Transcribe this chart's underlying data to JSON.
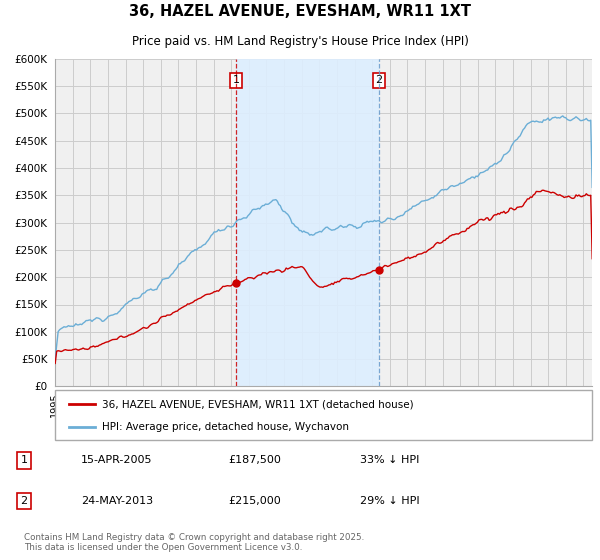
{
  "title": "36, HAZEL AVENUE, EVESHAM, WR11 1XT",
  "subtitle": "Price paid vs. HM Land Registry's House Price Index (HPI)",
  "background_color": "#ffffff",
  "plot_bg_color": "#f0f0f0",
  "shading_color": "#ddeeff",
  "ylabel": "",
  "ylim": [
    0,
    600000
  ],
  "yticks": [
    0,
    50000,
    100000,
    150000,
    200000,
    250000,
    300000,
    350000,
    400000,
    450000,
    500000,
    550000,
    600000
  ],
  "ytick_labels": [
    "£0",
    "£50K",
    "£100K",
    "£150K",
    "£200K",
    "£250K",
    "£300K",
    "£350K",
    "£400K",
    "£450K",
    "£500K",
    "£550K",
    "£600K"
  ],
  "hpi_color": "#6baed6",
  "price_color": "#cc0000",
  "vline1_color": "#cc0000",
  "vline2_color": "#6699cc",
  "grid_color": "#cccccc",
  "marker1_date": 2005.29,
  "marker2_date": 2013.39,
  "marker1_price": 187500,
  "marker2_price": 215000,
  "transaction1": "15-APR-2005",
  "transaction2": "24-MAY-2013",
  "legend_label_price": "36, HAZEL AVENUE, EVESHAM, WR11 1XT (detached house)",
  "legend_label_hpi": "HPI: Average price, detached house, Wychavon",
  "annotation1": "33% ↓ HPI",
  "annotation2": "29% ↓ HPI",
  "footer": "Contains HM Land Registry data © Crown copyright and database right 2025.\nThis data is licensed under the Open Government Licence v3.0.",
  "xmin": 1995.0,
  "xmax": 2025.5
}
